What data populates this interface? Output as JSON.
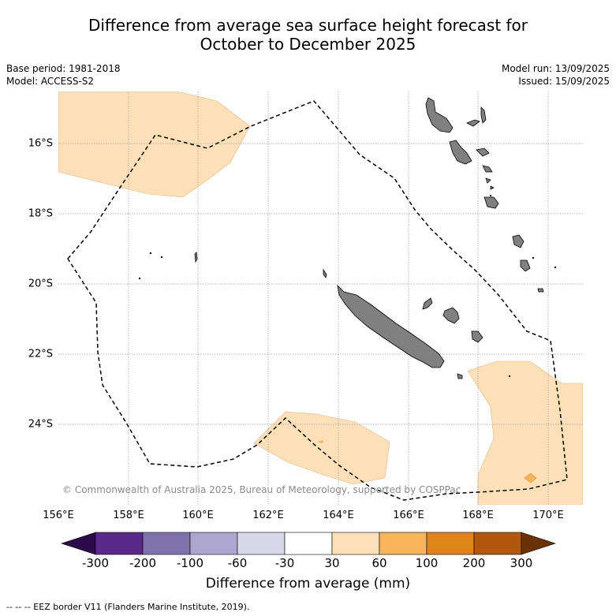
{
  "title_line1": "Difference from average sea surface height forecast for",
  "title_line2": "October to December 2025",
  "meta_left": {
    "base_period": "Base period: 1981-2018",
    "model": "Model: ACCESS-S2"
  },
  "meta_right": {
    "model_run": "Model run: 13/09/2025",
    "issued": "Issued: 15/09/2025"
  },
  "x_ticks": [
    "156°E",
    "158°E",
    "160°E",
    "162°E",
    "164°E",
    "166°E",
    "168°E",
    "170°E"
  ],
  "y_ticks": [
    "16°S",
    "18°S",
    "20°S",
    "22°S",
    "24°S"
  ],
  "copyright": "© Commonwealth of Australia 2025, Bureau of Meteorology, supported by COSPPac",
  "colorbar": {
    "label": "Difference from average (mm)",
    "ticks": [
      "-300",
      "-200",
      "-100",
      "-60",
      "-30",
      "30",
      "60",
      "100",
      "200",
      "300"
    ],
    "colors": [
      "#2d0a4a",
      "#5a2a8a",
      "#7f72ad",
      "#ada6cf",
      "#d8d8eb",
      "#ffffff",
      "#fde0b8",
      "#f9b45c",
      "#e08418",
      "#b0580c",
      "#6b3208"
    ]
  },
  "footer": "--  --  -- EEZ border V11 (Flanders Marine Institute, 2019).",
  "map_colors": {
    "land": "#808080",
    "anomaly_30_60": "#fde0b8",
    "anomaly_60_100": "#f9b45c"
  }
}
